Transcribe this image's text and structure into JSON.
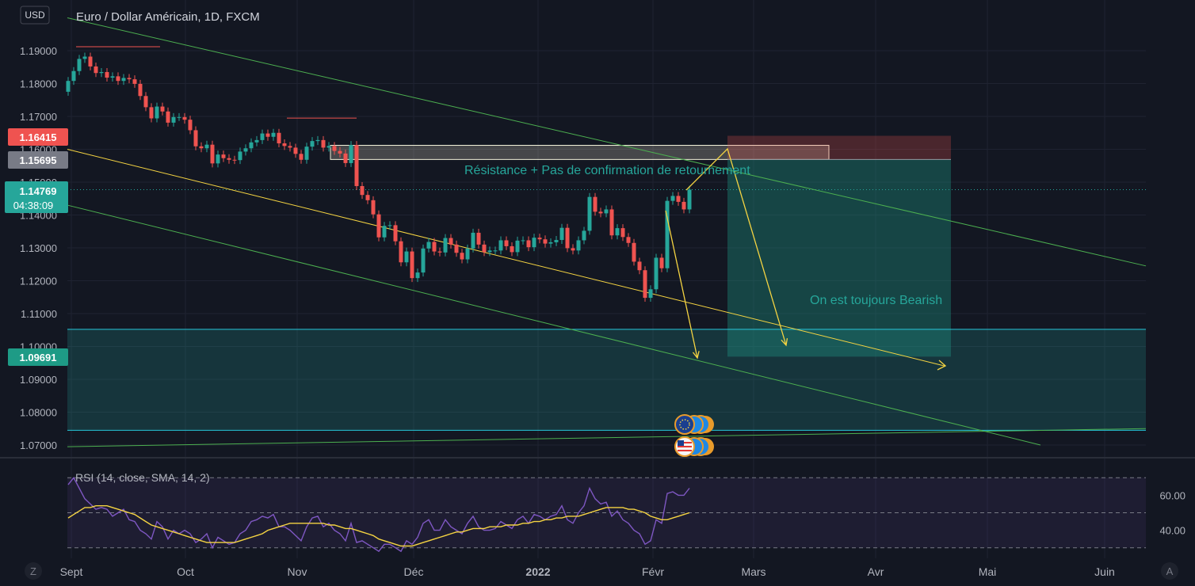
{
  "header": {
    "currency_button": "USD",
    "title": "Euro / Dollar Américain, 1D, FXCM"
  },
  "annotations": {
    "resistance_note": "Résistance + Pas de confirmation de retournement",
    "bearish_note": "On est toujours Bearish"
  },
  "price_badges": [
    {
      "label": "1.16415",
      "color": "#ef5350"
    },
    {
      "label": "1.15695",
      "color": "#787b86"
    },
    {
      "label": "1.14769",
      "sublabel": "04:38:09",
      "color": "#26a69a"
    },
    {
      "label": "1.09691",
      "color": "#1e9b86"
    }
  ],
  "chart_data": [
    {
      "type": "candlestick",
      "title": "Euro / Dollar Américain, 1D, FXCM",
      "ylim": [
        1.0665,
        1.2025
      ],
      "yticks": [
        "1.19000",
        "1.18000",
        "1.17000",
        "1.16000",
        "1.15000",
        "1.14000",
        "1.13000",
        "1.12000",
        "1.11000",
        "1.10000",
        "1.09000",
        "1.08000",
        "1.07000"
      ],
      "xticks": [
        "Sept",
        "Oct",
        "Nov",
        "Déc",
        "2022",
        "Févr",
        "Mars",
        "Avr",
        "Mai",
        "Juin"
      ],
      "close": [
        1.1808,
        1.1838,
        1.1875,
        1.1882,
        1.1852,
        1.1832,
        1.1835,
        1.1818,
        1.1822,
        1.1808,
        1.1817,
        1.1813,
        1.1799,
        1.1762,
        1.1728,
        1.1694,
        1.173,
        1.1715,
        1.1681,
        1.1698,
        1.1698,
        1.169,
        1.1658,
        1.1609,
        1.1603,
        1.1614,
        1.1557,
        1.1584,
        1.1573,
        1.1568,
        1.1567,
        1.1593,
        1.1603,
        1.1621,
        1.1628,
        1.1648,
        1.1638,
        1.165,
        1.1618,
        1.161,
        1.1605,
        1.1586,
        1.1568,
        1.1608,
        1.1625,
        1.1628,
        1.1605,
        1.161,
        1.1595,
        1.1587,
        1.1558,
        1.1613,
        1.1488,
        1.1461,
        1.1445,
        1.1402,
        1.1332,
        1.1367,
        1.1369,
        1.132,
        1.1256,
        1.1289,
        1.1208,
        1.1225,
        1.1298,
        1.1318,
        1.1289,
        1.1286,
        1.133,
        1.131,
        1.1285,
        1.1265,
        1.1298,
        1.1346,
        1.131,
        1.1287,
        1.1292,
        1.1292,
        1.1323,
        1.1305,
        1.1287,
        1.1322,
        1.1323,
        1.1302,
        1.1331,
        1.1326,
        1.1313,
        1.1317,
        1.1324,
        1.1361,
        1.1299,
        1.1292,
        1.1323,
        1.1352,
        1.1455,
        1.141,
        1.1405,
        1.1417,
        1.1338,
        1.136,
        1.1333,
        1.1315,
        1.1258,
        1.1232,
        1.1148,
        1.1174,
        1.127,
        1.1238,
        1.1443,
        1.1458,
        1.144,
        1.1417,
        1.1477
      ],
      "open": [
        1.1775,
        1.1808,
        1.1838,
        1.1875,
        1.1882,
        1.1852,
        1.1832,
        1.1835,
        1.1818,
        1.1822,
        1.1808,
        1.1817,
        1.1813,
        1.1799,
        1.1762,
        1.1728,
        1.1694,
        1.173,
        1.1715,
        1.1681,
        1.1698,
        1.1698,
        1.169,
        1.1658,
        1.1609,
        1.1603,
        1.1614,
        1.1557,
        1.1584,
        1.1573,
        1.1568,
        1.1567,
        1.1593,
        1.1603,
        1.1621,
        1.1628,
        1.1648,
        1.1638,
        1.165,
        1.1618,
        1.161,
        1.1605,
        1.1586,
        1.1568,
        1.1608,
        1.1625,
        1.1628,
        1.1605,
        1.161,
        1.1595,
        1.1587,
        1.1558,
        1.1613,
        1.1488,
        1.1461,
        1.1445,
        1.1402,
        1.1332,
        1.1367,
        1.1369,
        1.132,
        1.1256,
        1.1289,
        1.1208,
        1.1225,
        1.1298,
        1.1318,
        1.1289,
        1.1286,
        1.133,
        1.131,
        1.1285,
        1.1265,
        1.1298,
        1.1346,
        1.131,
        1.1287,
        1.1292,
        1.1292,
        1.1323,
        1.1305,
        1.1287,
        1.1322,
        1.1323,
        1.1302,
        1.1331,
        1.1326,
        1.1313,
        1.1317,
        1.1324,
        1.1361,
        1.1299,
        1.1292,
        1.1323,
        1.1352,
        1.1455,
        1.141,
        1.1405,
        1.1417,
        1.1338,
        1.136,
        1.1333,
        1.1315,
        1.1258,
        1.1232,
        1.1148,
        1.1174,
        1.127,
        1.1238,
        1.1443,
        1.1458,
        1.144,
        1.1417
      ],
      "series": [
        {
          "name": "Euro / Dollar Américain",
          "color_up": "#26a69a",
          "color_down": "#ef5350"
        }
      ],
      "trend_lines": [
        {
          "color": "#4caf50",
          "points": [
            [
              "Sept",
              1.2
            ],
            [
              "Juin+",
              1.1245
            ]
          ]
        },
        {
          "color": "#4caf50",
          "points": [
            [
              "Sept",
              1.143
            ],
            [
              "Mai+",
              1.07
            ]
          ]
        },
        {
          "color": "#f5d442",
          "points": [
            [
              "Sept",
              1.16
            ],
            [
              "Mai-",
              1.094
            ]
          ]
        },
        {
          "color": "#4caf50",
          "points": [
            [
              "Sept",
              1.0695
            ],
            [
              "Juin+",
              1.075
            ]
          ]
        }
      ],
      "horizontal_levels": [
        {
          "color": "#ef5350",
          "value": 1.1912
        },
        {
          "color": "#ef5350",
          "value": 1.1695
        },
        {
          "color": "#26c6da",
          "value": 1.1052
        },
        {
          "color": "#26c6da",
          "value": 1.0745
        }
      ],
      "zones": [
        {
          "kind": "resistance",
          "from": 1.1569,
          "to": 1.1612
        },
        {
          "kind": "stop",
          "from": 1.1569,
          "to": 1.1641
        },
        {
          "kind": "target",
          "from": 1.0969,
          "to": 1.1569
        },
        {
          "kind": "support",
          "from": 1.0745,
          "to": 1.1052
        }
      ]
    },
    {
      "type": "line",
      "title": "RSI (14, close, SMA, 14, 2)",
      "ylim": [
        24,
        76
      ],
      "yticks": [
        "60.00",
        "40.00"
      ],
      "bands": [
        30,
        50,
        70
      ],
      "series": [
        {
          "name": "RSI",
          "color": "#7e57c2",
          "values": [
            66,
            70,
            64,
            58,
            55,
            52,
            53,
            52,
            48,
            50,
            52,
            46,
            45,
            40,
            38,
            35,
            45,
            42,
            35,
            40,
            38,
            40,
            38,
            33,
            35,
            38,
            30,
            36,
            34,
            32,
            33,
            38,
            40,
            45,
            46,
            48,
            47,
            49,
            42,
            42,
            40,
            37,
            34,
            42,
            47,
            48,
            42,
            44,
            40,
            38,
            34,
            44,
            33,
            34,
            32,
            30,
            28,
            32,
            32,
            30,
            28,
            34,
            32,
            36,
            44,
            46,
            40,
            40,
            46,
            42,
            40,
            38,
            44,
            48,
            42,
            40,
            40,
            41,
            45,
            43,
            41,
            46,
            48,
            44,
            49,
            48,
            46,
            48,
            49,
            54,
            46,
            44,
            50,
            54,
            64,
            58,
            55,
            56,
            48,
            51,
            46,
            44,
            40,
            38,
            32,
            34,
            46,
            44,
            61,
            62,
            60,
            60,
            64
          ]
        },
        {
          "name": "SMA",
          "color": "#f5d442",
          "values": [
            47,
            49,
            51,
            53,
            53,
            54,
            54,
            54,
            53,
            52,
            51,
            50,
            49,
            47,
            45,
            43,
            42,
            41,
            40,
            39,
            38,
            37,
            36,
            35,
            34,
            33,
            33,
            33,
            33,
            33,
            33,
            34,
            35,
            36,
            37,
            38,
            40,
            41,
            42,
            43,
            44,
            44,
            44,
            44,
            44,
            44,
            44,
            43,
            43,
            42,
            41,
            41,
            40,
            39,
            38,
            37,
            35,
            34,
            33,
            32,
            31,
            31,
            31,
            32,
            33,
            34,
            35,
            36,
            37,
            38,
            39,
            39,
            40,
            41,
            41,
            41,
            42,
            42,
            42,
            43,
            43,
            43,
            44,
            44,
            45,
            45,
            46,
            46,
            47,
            47,
            48,
            48,
            48,
            49,
            50,
            51,
            52,
            53,
            53,
            53,
            53,
            52,
            52,
            51,
            50,
            48,
            47,
            46,
            46,
            47,
            48,
            49,
            50
          ]
        }
      ]
    }
  ]
}
